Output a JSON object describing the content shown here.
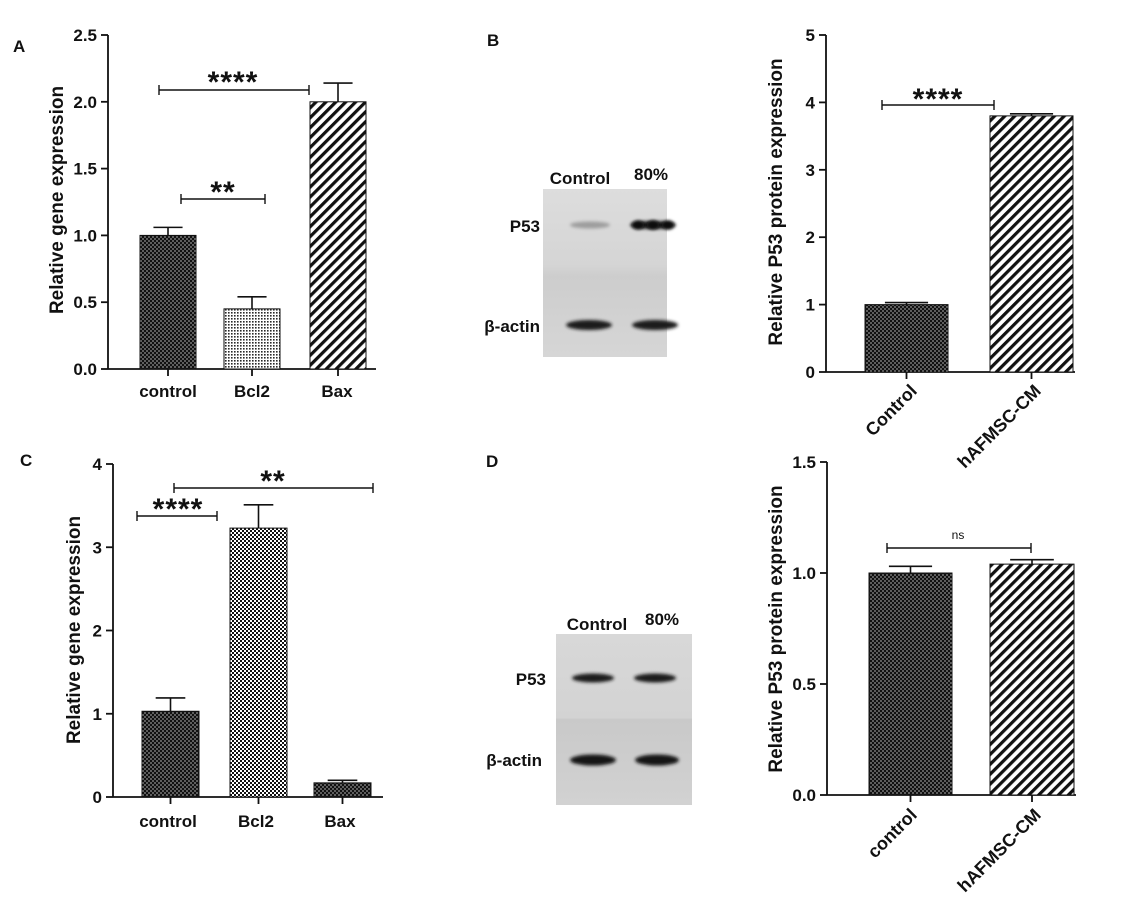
{
  "chart_data": [
    {
      "panel": "A",
      "type": "bar",
      "categories": [
        "control",
        "Bcl2",
        "Bax"
      ],
      "values": [
        1.0,
        0.45,
        2.0
      ],
      "errors": [
        0.06,
        0.09,
        0.14
      ],
      "ylabel": "Relative gene expression",
      "ylim": [
        0,
        2.5
      ],
      "yticks": [
        "0.0",
        "0.5",
        "1.0",
        "1.5",
        "2.0",
        "2.5"
      ],
      "comparisons": [
        {
          "groups": [
            0,
            2
          ],
          "label": "****"
        },
        {
          "groups": [
            0,
            1
          ],
          "label": "**"
        }
      ]
    },
    {
      "panel": "B",
      "type": "bar",
      "categories": [
        "Control",
        "hAFMSC-CM"
      ],
      "values": [
        1.0,
        3.8
      ],
      "errors": [
        0.03,
        0.03
      ],
      "ylabel": "Relative P53 protein expression",
      "ylim": [
        0,
        5
      ],
      "yticks": [
        "0",
        "1",
        "2",
        "3",
        "4",
        "5"
      ],
      "comparisons": [
        {
          "groups": [
            0,
            1
          ],
          "label": "****"
        }
      ]
    },
    {
      "panel": "C",
      "type": "bar",
      "categories": [
        "control",
        "Bcl2",
        "Bax"
      ],
      "values": [
        1.03,
        3.23,
        0.17
      ],
      "errors": [
        0.16,
        0.28,
        0.03
      ],
      "ylabel": "Relative gene expression",
      "ylim": [
        0,
        4
      ],
      "yticks": [
        "0",
        "1",
        "2",
        "3",
        "4"
      ],
      "comparisons": [
        {
          "groups": [
            0,
            1
          ],
          "label": "****"
        },
        {
          "groups": [
            0,
            2
          ],
          "label": "**"
        }
      ]
    },
    {
      "panel": "D",
      "type": "bar",
      "categories": [
        "control",
        "hAFMSC-CM"
      ],
      "values": [
        1.0,
        1.04
      ],
      "errors": [
        0.03,
        0.02
      ],
      "ylabel": "Relative P53 protein expression",
      "ylim": [
        0,
        1.5
      ],
      "yticks": [
        "0.0",
        "0.5",
        "1.0",
        "1.5"
      ],
      "comparisons": [
        {
          "groups": [
            0,
            1
          ],
          "label": "ns"
        }
      ]
    }
  ],
  "blots": [
    {
      "lanes": [
        "Control",
        "80%"
      ],
      "rows": [
        "P53",
        "β-actin"
      ]
    },
    {
      "lanes": [
        "Control",
        "80%"
      ],
      "rows": [
        "P53",
        "β-actin"
      ]
    }
  ]
}
